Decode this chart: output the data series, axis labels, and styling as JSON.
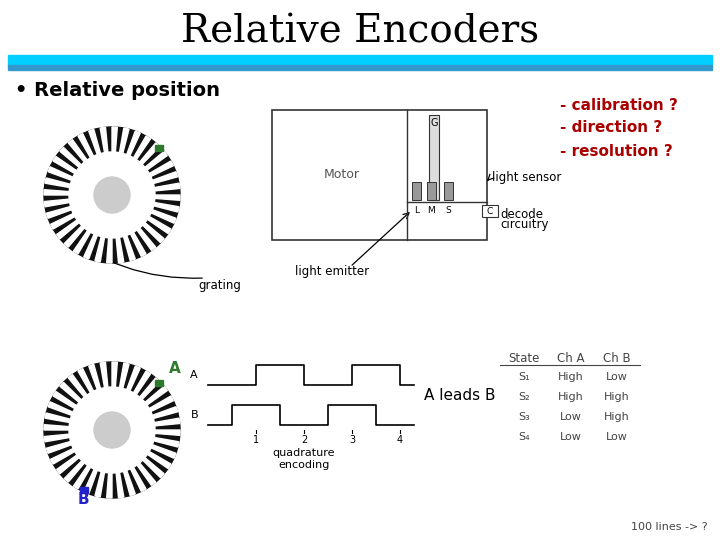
{
  "title": "Relative Encoders",
  "title_fontsize": 28,
  "title_font": "serif",
  "background_color": "#ffffff",
  "header_bar_color1": "#00cfff",
  "header_bar_color2": "#3399cc",
  "bullet_text": "• Relative position",
  "bullet_fontsize": 14,
  "red_notes": [
    "- calibration ?",
    "- direction ?",
    "- resolution ?"
  ],
  "red_color": "#aa0000",
  "red_fontsize": 11,
  "label_light_sensor": "light sensor",
  "label_light_emitter": "light emitter",
  "label_grating": "grating",
  "label_decode": "decode",
  "label_circuitry": "circuitry",
  "label_A": "A",
  "label_B": "B",
  "label_A_leads_B": "A leads B",
  "label_quadrature": "quadrature\nencoding",
  "label_100lines": "100 lines -> ?",
  "table_headers": [
    "State",
    "Ch A",
    "Ch B"
  ],
  "table_rows": [
    [
      "S₁",
      "High",
      "Low"
    ],
    [
      "S₂",
      "High",
      "High"
    ],
    [
      "S₃",
      "Low",
      "High"
    ],
    [
      "S₄",
      "Low",
      "Low"
    ]
  ],
  "green_color": "#2d7a2d",
  "blue_color": "#2222cc",
  "black_color": "#000000",
  "gray_color": "#888888",
  "dark_gray": "#444444",
  "wheel_outer": 68,
  "wheel_inner": 43,
  "wheel_hole": 18,
  "wheel_teeth": 36
}
